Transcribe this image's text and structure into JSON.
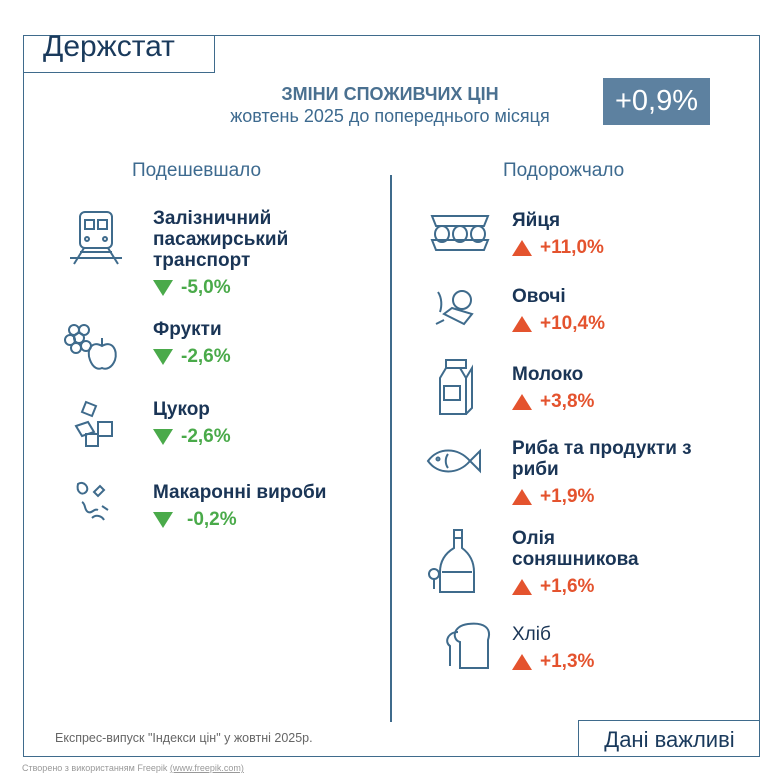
{
  "header": {
    "logo": "Держстат",
    "title": "ЗМІНИ СПОЖИВЧИХ ЦІН",
    "subtitle": "жовтень 2025 до попереднього місяця",
    "total_change": "+0,9%"
  },
  "colors": {
    "frame": "#3f6b8c",
    "badge": "#5d81a0",
    "down": "#4aaa4a",
    "up": "#e4532e",
    "text": "#1a3556"
  },
  "cheaper": {
    "heading": "Подешевшало",
    "items": [
      {
        "name": "Залізничний пасажирський транспорт",
        "value": "-5,0%",
        "icon": "train-icon"
      },
      {
        "name": "Фрукти",
        "value": "-2,6%",
        "icon": "fruits-icon"
      },
      {
        "name": "Цукор",
        "value": "-2,6%",
        "icon": "sugar-cubes-icon"
      },
      {
        "name": "Макаронні вироби",
        "value": "-0,2%",
        "icon": "pasta-icon"
      }
    ]
  },
  "pricier": {
    "heading": "Подорожчало",
    "items": [
      {
        "name": "Яйця",
        "value": "+11,0%",
        "icon": "eggs-icon"
      },
      {
        "name": "Овочі",
        "value": "+10,4%",
        "icon": "vegetables-icon"
      },
      {
        "name": "Молоко",
        "value": "+3,8%",
        "icon": "milk-carton-icon"
      },
      {
        "name": "Риба та продукти з риби",
        "value": "+1,9%",
        "icon": "fish-icon"
      },
      {
        "name": "Олія соняшникова",
        "value": "+1,6%",
        "icon": "oil-bottle-icon"
      },
      {
        "name": "Хліб",
        "value": "+1,3%",
        "icon": "bread-icon"
      }
    ]
  },
  "footer": {
    "source": "Експрес-випуск \"Індекси цін\" у жовтні 2025р.",
    "tagline": "Дані важливі",
    "credit": "Створено з використанням Freepik",
    "credit_link": "(www.freepik.com)"
  }
}
